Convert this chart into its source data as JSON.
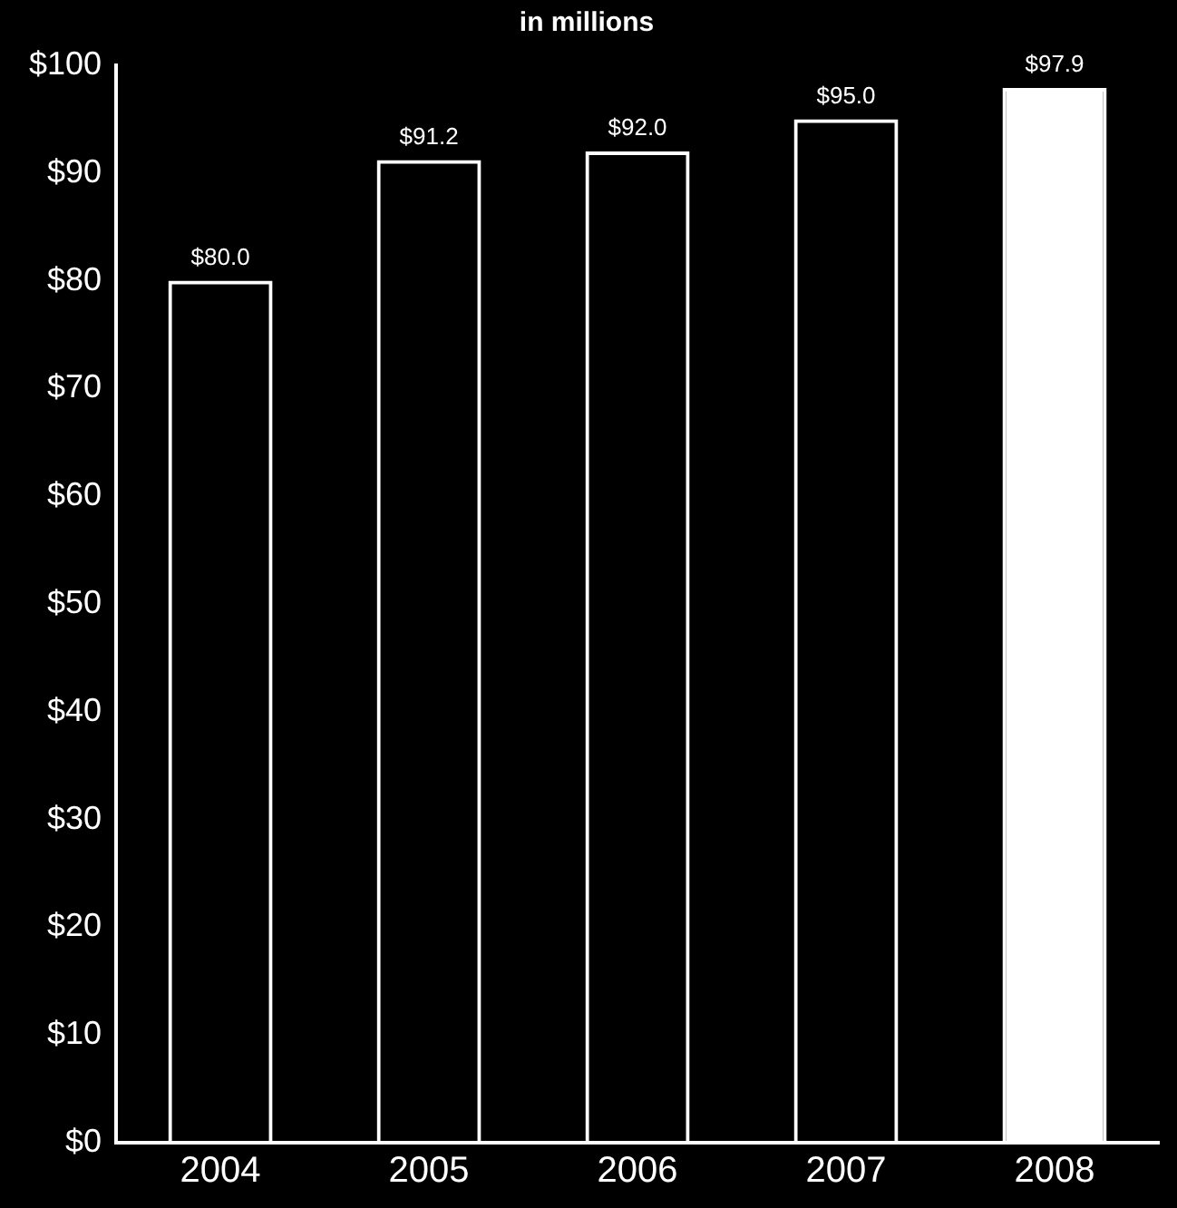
{
  "chart_data": {
    "type": "bar",
    "title": "in millions",
    "categories": [
      "2004",
      "2005",
      "2006",
      "2007",
      "2008"
    ],
    "stacked": true,
    "series": [
      {
        "color": "#ffffff",
        "values": [
          80.0,
          91.2,
          92.0,
          95.0,
          null
        ],
        "value_labels": [
          "$80.0",
          "$91.2",
          "$92.0",
          "$95.0",
          null
        ]
      },
      {
        "color": "#ffffff",
        "values": [
          null,
          null,
          null,
          null,
          97.9
        ],
        "value_labels": [
          null,
          null,
          null,
          null,
          "$97.9"
        ]
      }
    ],
    "ylim": [
      0,
      100
    ],
    "yticks": [
      {
        "value": 0,
        "label": "$0"
      },
      {
        "value": 10,
        "label": "$10"
      },
      {
        "value": 20,
        "label": "$20"
      },
      {
        "value": 30,
        "label": "$30"
      },
      {
        "value": 40,
        "label": "$40"
      },
      {
        "value": 50,
        "label": "$50"
      },
      {
        "value": 60,
        "label": "$60"
      },
      {
        "value": 70,
        "label": "$70"
      },
      {
        "value": 80,
        "label": "$80"
      },
      {
        "value": 90,
        "label": "$90"
      },
      {
        "value": 100,
        "label": "$100"
      }
    ],
    "grid": false,
    "legend": false
  }
}
